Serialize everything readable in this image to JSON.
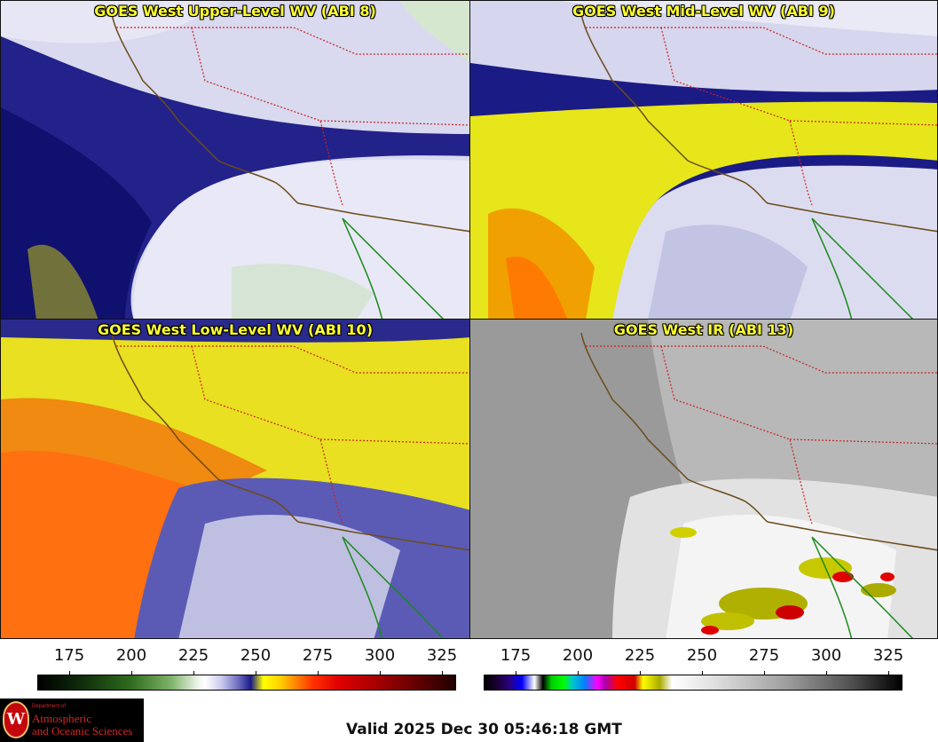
{
  "panels": [
    {
      "title": "GOES West Upper-Level WV (ABI 8)"
    },
    {
      "title": "GOES West Mid-Level WV (ABI 9)"
    },
    {
      "title": "GOES West Low-Level WV (ABI 10)"
    },
    {
      "title": "GOES West IR (ABI 13)"
    }
  ],
  "colorbars": [
    {
      "ticks": [
        "175",
        "200",
        "225",
        "250",
        "275",
        "300",
        "325"
      ],
      "palette": "water-vapor"
    },
    {
      "ticks": [
        "175",
        "200",
        "225",
        "250",
        "275",
        "300",
        "325"
      ],
      "palette": "infrared"
    }
  ],
  "logo": {
    "dept": "Department of",
    "line1": "Atmospheric",
    "line2": "and Oceanic Sciences",
    "seal_letter": "W"
  },
  "valid_time": "Valid 2025 Dec 30 05:46:18 GMT",
  "colors": {
    "title_yellow": "#ffff33",
    "coast": "#6b4b1a",
    "border": "#cc2020",
    "mexico_coast": "#1a8a1a"
  }
}
